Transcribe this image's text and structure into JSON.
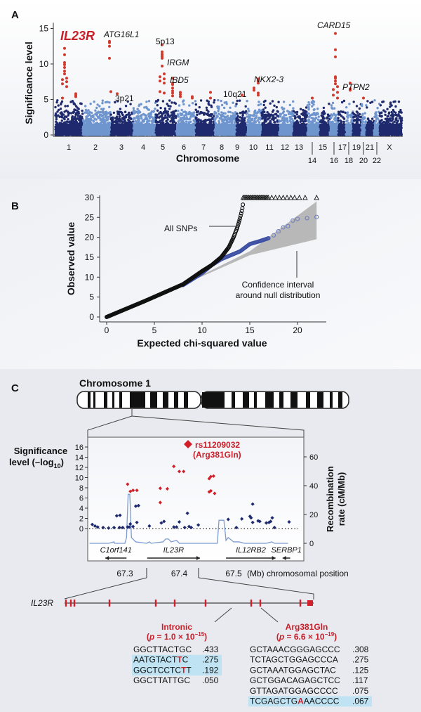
{
  "chart_data": [
    {
      "panel": "A",
      "type": "scatter",
      "xlabel": "Chromosome",
      "ylabel": "Significance level",
      "ylim": [
        0,
        15
      ],
      "yticks": [
        "0",
        "5",
        "10",
        "15"
      ],
      "categories_upper": [
        "1",
        "2",
        "3",
        "4",
        "5",
        "6",
        "7",
        "8",
        "9",
        "10",
        "11",
        "12",
        "13",
        "15",
        "17",
        "19",
        "21",
        "X"
      ],
      "categories_lower": [
        "14",
        "16",
        "18",
        "20",
        "22"
      ],
      "chromosomes": [
        "1",
        "2",
        "3",
        "4",
        "5",
        "6",
        "7",
        "8",
        "9",
        "10",
        "11",
        "12",
        "13",
        "14",
        "15",
        "16",
        "17",
        "18",
        "19",
        "20",
        "21",
        "22",
        "X"
      ],
      "colors": {
        "dark": "#1f2a6e",
        "light": "#6f95cf",
        "highlight": "#d23a2e"
      },
      "peaks": [
        {
          "label": "IL23R",
          "chromosome": "1",
          "values": [
            12.2,
            11.3,
            10.2,
            9.9,
            9.5,
            9.0,
            8.6,
            8.0,
            7.8,
            7.5,
            7.2,
            6.8,
            5.2
          ]
        },
        {
          "label": "",
          "chromosome": "1",
          "values": [
            5.8,
            5.6,
            5.4
          ]
        },
        {
          "label": "ATG16L1",
          "chromosome": "2",
          "values": [
            13.2,
            13.0,
            12.5,
            10.8
          ]
        },
        {
          "label": "3p21",
          "chromosome": "3",
          "values": [
            6.1,
            5.8
          ]
        },
        {
          "label": "5p13",
          "chromosome": "5",
          "values": [
            12.7,
            11.7,
            11.4,
            11.2,
            11.0,
            10.8,
            9.7,
            8.6,
            8.2,
            7.9,
            7.6,
            7.3,
            6.1,
            5.9
          ]
        },
        {
          "label": "IRGM",
          "chromosome": "5",
          "values": []
        },
        {
          "label": "IBD5",
          "chromosome": "5",
          "values": [
            8.0,
            7.3,
            7.1,
            6.6,
            6.2,
            5.9,
            5.5
          ]
        },
        {
          "label": "",
          "chromosome": "6",
          "values": [
            6.0,
            5.7,
            5.4
          ]
        },
        {
          "label": "",
          "chromosome": "6",
          "values": [
            5.4,
            5.2
          ]
        },
        {
          "label": "",
          "chromosome": "7",
          "values": [
            6.0,
            5.2
          ]
        },
        {
          "label": "10q21",
          "chromosome": "9",
          "values": [
            5.6
          ]
        },
        {
          "label": "",
          "chromosome": "10",
          "values": [
            6.6,
            6.3
          ]
        },
        {
          "label": "NKX2-3",
          "chromosome": "10",
          "values": [
            7.9,
            7.6,
            7.3,
            5.9,
            5.6
          ]
        },
        {
          "label": "",
          "chromosome": "14",
          "values": [
            5.2
          ]
        },
        {
          "label": "CARD15",
          "chromosome": "16",
          "values": [
            14.3,
            12.0,
            11.0,
            8.2,
            8.0,
            7.6,
            7.2,
            6.8,
            6.4,
            6.0,
            5.6,
            5.2
          ]
        },
        {
          "label": "PTPN2",
          "chromosome": "18",
          "values": [
            7.3,
            6.5,
            6.3
          ]
        },
        {
          "label": "",
          "chromosome": "19",
          "values": [
            5.2
          ]
        }
      ]
    },
    {
      "panel": "B",
      "type": "scatter",
      "xlabel": "Expected chi-squared value",
      "ylabel": "Observed value",
      "xlim": [
        0,
        22
      ],
      "ylim": [
        0,
        30
      ],
      "xticks": [
        "0",
        "5",
        "10",
        "15",
        "20"
      ],
      "yticks": [
        "0",
        "5",
        "10",
        "15",
        "20",
        "25",
        "30"
      ],
      "annotations": [
        "All SNPs",
        "Confidence interval",
        "around null distribution"
      ],
      "series": [
        {
          "name": "All SNPs",
          "color": "#111111",
          "points": [
            [
              0,
              0
            ],
            [
              4,
              4
            ],
            [
              8,
              8.2
            ],
            [
              10,
              11.5
            ],
            [
              11,
              13
            ],
            [
              12,
              15
            ],
            [
              12.8,
              17.5
            ],
            [
              13.3,
              20
            ],
            [
              13.7,
              22.5
            ],
            [
              14,
              25
            ],
            [
              14.2,
              27
            ],
            [
              14.3,
              28.5
            ]
          ]
        },
        {
          "color": "#3b4ea3",
          "points": [
            [
              8,
              8
            ],
            [
              10,
              11
            ],
            [
              11,
              13
            ],
            [
              12,
              14.5
            ],
            [
              13,
              15.5
            ],
            [
              14,
              16.5
            ],
            [
              15,
              18.3
            ],
            [
              16,
              19
            ],
            [
              17,
              19.8
            ],
            [
              17.5,
              20.5
            ],
            [
              18,
              21.5
            ],
            [
              18.5,
              22.5
            ],
            [
              19,
              22.8
            ],
            [
              19.5,
              24.2
            ],
            [
              20,
              24.6
            ],
            [
              21,
              24.8
            ],
            [
              22,
              25.1
            ]
          ]
        },
        {
          "marker": "triangle",
          "y": 30,
          "x_from": 14.3,
          "x_to": 22
        }
      ],
      "confidence_band": {
        "color": "#b8b8b8",
        "lower": [
          [
            7,
            7
          ],
          [
            15,
            15.5
          ],
          [
            22,
            19.5
          ]
        ],
        "upper": [
          [
            7,
            7
          ],
          [
            15,
            16.5
          ],
          [
            22,
            29
          ]
        ]
      }
    },
    {
      "panel": "C",
      "type": "scatter",
      "title": "Chromosome 1",
      "ylabel_left": "Significance level (–log10)",
      "ylabel_right": "Recombination rate (cM/Mb)",
      "xlabel": "(Mb) chromosomal position",
      "xticks": [
        "67.3",
        "67.4",
        "67.5"
      ],
      "yticks_left": [
        "0",
        "2",
        "4",
        "6",
        "8",
        "10",
        "12",
        "14",
        "16"
      ],
      "yticks_right": [
        "0",
        "20",
        "40",
        "60"
      ],
      "ylim_left": [
        0,
        16
      ],
      "ylim_right": [
        0,
        60
      ],
      "lead_snp": {
        "label": "rs11209032",
        "sublabel": "(Arg381Gln)",
        "position": 67.415,
        "value": 16.4
      },
      "red_points": [
        [
          67.305,
          8.7
        ],
        [
          67.31,
          7.3
        ],
        [
          67.315,
          7.5
        ],
        [
          67.322,
          7.5
        ],
        [
          67.365,
          7.9
        ],
        [
          67.365,
          5.1
        ],
        [
          67.378,
          7.8
        ],
        [
          67.39,
          12.2
        ],
        [
          67.4,
          11.2
        ],
        [
          67.408,
          11.2
        ],
        [
          67.455,
          9.8
        ],
        [
          67.458,
          10.2
        ],
        [
          67.463,
          10.3
        ],
        [
          67.455,
          7.2
        ],
        [
          67.458,
          7.4
        ],
        [
          67.465,
          6.9
        ]
      ],
      "blue_points": [
        [
          67.24,
          0.8
        ],
        [
          67.245,
          0.5
        ],
        [
          67.25,
          0.3
        ],
        [
          67.26,
          0.2
        ],
        [
          67.27,
          0.1
        ],
        [
          67.28,
          0.2
        ],
        [
          67.285,
          2.5
        ],
        [
          67.291,
          2.6
        ],
        [
          67.29,
          0.2
        ],
        [
          67.296,
          0.2
        ],
        [
          67.305,
          0.3
        ],
        [
          67.308,
          0.3
        ],
        [
          67.31,
          0.9
        ],
        [
          67.315,
          0.4
        ],
        [
          67.322,
          1.2
        ],
        [
          67.32,
          4.4
        ],
        [
          67.325,
          4.5
        ],
        [
          67.345,
          0.5
        ],
        [
          67.367,
          1.1
        ],
        [
          67.372,
          1.4
        ],
        [
          67.39,
          0.3
        ],
        [
          67.395,
          0.3
        ],
        [
          67.4,
          1.3
        ],
        [
          67.41,
          0.2
        ],
        [
          67.415,
          3.0
        ],
        [
          67.418,
          0.4
        ],
        [
          67.422,
          0.2
        ],
        [
          67.435,
          0.7
        ],
        [
          67.49,
          1.8
        ],
        [
          67.505,
          0.2
        ],
        [
          67.515,
          1.9
        ],
        [
          67.53,
          2.4
        ],
        [
          67.532,
          2.1
        ],
        [
          67.535,
          1.2
        ],
        [
          67.535,
          4.8
        ],
        [
          67.545,
          1.5
        ],
        [
          67.548,
          1.4
        ],
        [
          67.56,
          1.1
        ],
        [
          67.565,
          1.2
        ],
        [
          67.568,
          1.4
        ],
        [
          67.571,
          2.1
        ],
        [
          67.575,
          0.2
        ],
        [
          67.602,
          1.3
        ]
      ],
      "recombination": [
        [
          67.235,
          0
        ],
        [
          67.27,
          0
        ],
        [
          67.28,
          1
        ],
        [
          67.281,
          0
        ],
        [
          67.3,
          0
        ],
        [
          67.303,
          4
        ],
        [
          67.306,
          34
        ],
        [
          67.309,
          34
        ],
        [
          67.312,
          4
        ],
        [
          67.32,
          1
        ],
        [
          67.34,
          0
        ],
        [
          67.345,
          1
        ],
        [
          67.348,
          0
        ],
        [
          67.37,
          1
        ],
        [
          67.375,
          3
        ],
        [
          67.38,
          3
        ],
        [
          67.385,
          1
        ],
        [
          67.395,
          2
        ],
        [
          67.4,
          0
        ],
        [
          67.44,
          0
        ],
        [
          67.47,
          0
        ],
        [
          67.473,
          16
        ],
        [
          67.482,
          16
        ],
        [
          67.486,
          2
        ],
        [
          67.49,
          4
        ],
        [
          67.5,
          1
        ],
        [
          67.51,
          1
        ],
        [
          67.52,
          0
        ],
        [
          67.56,
          0
        ],
        [
          67.57,
          1
        ],
        [
          67.575,
          0
        ],
        [
          67.6,
          0
        ]
      ],
      "genes": [
        {
          "name": "C1orf141",
          "start": 67.264,
          "end": 67.303,
          "direction": "left"
        },
        {
          "name": "IL23R",
          "start": 67.341,
          "end": 67.438,
          "direction": "right"
        },
        {
          "name": "IL12RB2",
          "start": 67.486,
          "end": 67.577,
          "direction": "right"
        },
        {
          "name": "SERBP1",
          "start": 67.59,
          "end": 67.604,
          "direction": "left"
        }
      ]
    }
  ],
  "panels": {
    "a": "A",
    "b": "B",
    "c": "C"
  },
  "panelA": {
    "ylabel": "Significance level",
    "xlabel": "Chromosome",
    "labels": {
      "il23r": "IL23R",
      "atg16l1": "ATG16L1",
      "p5p13": "5p13",
      "irgm": "IRGM",
      "ibd5": "IBD5",
      "p3p21": "3p21",
      "q10q21": "10q21",
      "nkx23": "NKX2-3",
      "card15": "CARD15",
      "ptpn2": "PTPN2"
    }
  },
  "panelB": {
    "ylabel": "Observed value",
    "xlabel": "Expected chi-squared value",
    "all_snps": "All SNPs",
    "ci1": "Confidence interval",
    "ci2": "around null distribution"
  },
  "panelC": {
    "chromosome": "Chromosome 1",
    "ylabel1": "Significance",
    "ylabel2": "level (–log",
    "ylabel_sub": "10",
    "ylabel3": ")",
    "rlabel1": "Recombination",
    "rlabel2": "rate (cM/Mb)",
    "lead": "rs11209032",
    "lead_sub": "(Arg381Gln)",
    "xunit": "(Mb) chromosomal position",
    "gene_model": "IL23R",
    "intronic": {
      "title": "Intronic",
      "p_pre": "(",
      "p_it": "p",
      "p_mid": " = 1.0 × 10",
      "p_exp": "−15",
      "p_post": ")"
    },
    "missense": {
      "title": "Arg381Gln",
      "p_pre": "(",
      "p_it": "p",
      "p_mid": " = 6.6 × 10",
      "p_exp": "−19",
      "p_post": ")"
    },
    "haplotypes_left": [
      {
        "seq": "GGCTTACTGC",
        "freq": ".433",
        "highlight": false,
        "red_index": -1
      },
      {
        "seq": "AATGTACTTC",
        "freq": ".275",
        "highlight": true,
        "red_index": 8
      },
      {
        "seq": "GGCTCCTCTT",
        "freq": ".192",
        "highlight": true,
        "red_index": 8
      },
      {
        "seq": "GGCTTATTGC",
        "freq": ".050",
        "highlight": false,
        "red_index": -1
      }
    ],
    "haplotypes_right": [
      {
        "seq": "GCTAAACGGGAGCCC",
        "freq": ".308",
        "highlight": false,
        "red_index": -1
      },
      {
        "seq": "TCTAGCTGGAGCCCA",
        "freq": ".275",
        "highlight": false,
        "red_index": -1
      },
      {
        "seq": "GCTAAATGGAGCTAC",
        "freq": ".125",
        "highlight": false,
        "red_index": -1
      },
      {
        "seq": "GCTGGACAGAGCTCC",
        "freq": ".117",
        "highlight": false,
        "red_index": -1
      },
      {
        "seq": "GTTAGATGGAGCCCC",
        "freq": ".075",
        "highlight": false,
        "red_index": -1
      },
      {
        "seq": "TCGAGCTGAAACCCC",
        "freq": ".067",
        "highlight": true,
        "red_index": 8
      }
    ],
    "highlight_color": "#bfe3f2"
  }
}
